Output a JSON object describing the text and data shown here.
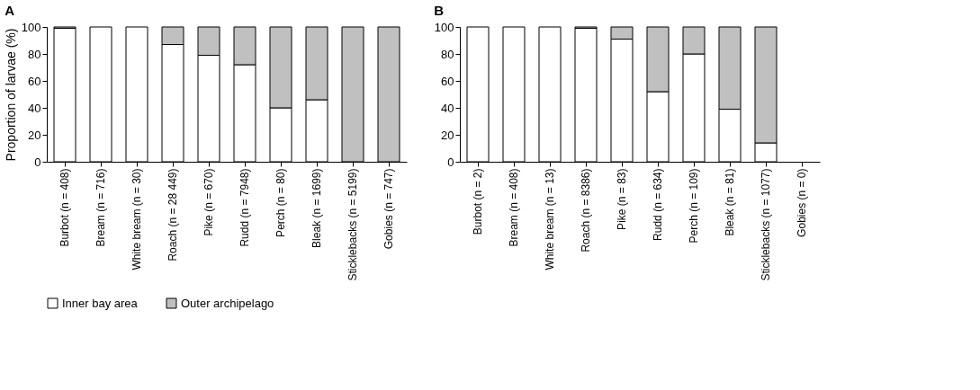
{
  "chart_data": [
    {
      "type": "bar",
      "title": "A",
      "ylabel": "Proportion of larvae (%)",
      "stacked": true,
      "ylim": [
        0,
        100
      ],
      "yticks": [
        0,
        20,
        40,
        60,
        80,
        100
      ],
      "grid": false,
      "legend": "bottom",
      "categories": [
        "Burbot (n = 408)",
        "Bream (n = 716)",
        "White bream (n = 30)",
        "Roach (n = 28 449)",
        "Pike (n = 670)",
        "Rudd (n = 7948)",
        "Perch (n = 80)",
        "Bleak (n = 1699)",
        "Sticklebacks (n = 5199)",
        "Gobies (n = 747)"
      ],
      "series": [
        {
          "name": "Inner bay area",
          "color": "#ffffff",
          "values": [
            99,
            100,
            100,
            87,
            79,
            72,
            40,
            46,
            0,
            0
          ]
        },
        {
          "name": "Outer archipelago",
          "color": "#c0c0c0",
          "values": [
            1,
            0,
            0,
            13,
            21,
            28,
            60,
            54,
            100,
            100
          ]
        }
      ]
    },
    {
      "type": "bar",
      "title": "B",
      "stacked": true,
      "ylim": [
        0,
        100
      ],
      "yticks": [
        0,
        20,
        40,
        60,
        80,
        100
      ],
      "grid": false,
      "legend": "bottom",
      "categories": [
        "Burbot (n = 2)",
        "Bream (n = 408)",
        "White bream (n = 13)",
        "Roach (n = 8386)",
        "Pike (n = 83)",
        "Rudd (n = 634)",
        "Perch (n = 109)",
        "Bleak (n = 81)",
        "Sticklebacks (n = 1077)",
        "Gobies (n = 0)"
      ],
      "series": [
        {
          "name": "Inner bay area",
          "color": "#ffffff",
          "values": [
            100,
            100,
            100,
            99,
            91,
            52,
            80,
            39,
            14,
            null
          ]
        },
        {
          "name": "Outer archipelago",
          "color": "#c0c0c0",
          "values": [
            0,
            0,
            0,
            1,
            9,
            48,
            20,
            61,
            86,
            null
          ]
        }
      ]
    }
  ]
}
